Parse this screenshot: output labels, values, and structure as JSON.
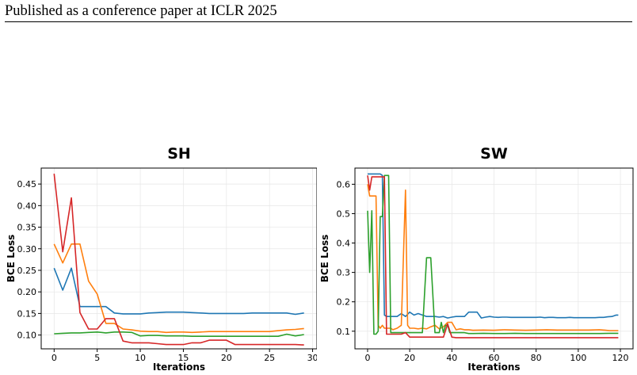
{
  "page": {
    "header": "Published as a conference paper at ICLR 2025"
  },
  "colors": {
    "blue": "#1f77b4",
    "orange": "#ff7f0e",
    "green": "#2ca02c",
    "red": "#d62728",
    "grid": "#e6e6e6"
  },
  "chart_data": [
    {
      "type": "line",
      "title": "SH",
      "xlabel": "Iterations",
      "ylabel": "BCE Loss",
      "xlim": [
        -1.5,
        30.5
      ],
      "ylim": [
        0.068,
        0.487
      ],
      "xticks": [
        0,
        5,
        10,
        15,
        20,
        25,
        30
      ],
      "yticks": [
        0.1,
        0.15,
        0.2,
        0.25,
        0.3,
        0.35,
        0.4,
        0.45
      ],
      "ytick_labels": [
        "0.10",
        "0.15",
        "0.20",
        "0.25",
        "0.30",
        "0.35",
        "0.40",
        "0.45"
      ],
      "grid": true,
      "legend": "none",
      "series": [
        {
          "color": "#1f77b4",
          "x": [
            0,
            1,
            2,
            3,
            4,
            5,
            6,
            7,
            8,
            9,
            10,
            11,
            12,
            13,
            14,
            15,
            16,
            17,
            18,
            19,
            20,
            21,
            22,
            23,
            24,
            25,
            26,
            27,
            28,
            29
          ],
          "y": [
            0.255,
            0.204,
            0.255,
            0.166,
            0.166,
            0.166,
            0.166,
            0.151,
            0.149,
            0.149,
            0.149,
            0.151,
            0.152,
            0.153,
            0.153,
            0.153,
            0.152,
            0.151,
            0.15,
            0.15,
            0.15,
            0.15,
            0.15,
            0.151,
            0.151,
            0.151,
            0.151,
            0.151,
            0.148,
            0.151
          ]
        },
        {
          "color": "#ff7f0e",
          "x": [
            0,
            1,
            2,
            3,
            4,
            5,
            6,
            7,
            8,
            9,
            10,
            11,
            12,
            13,
            14,
            15,
            16,
            17,
            18,
            19,
            20,
            21,
            22,
            23,
            24,
            25,
            26,
            27,
            28,
            29
          ],
          "y": [
            0.311,
            0.267,
            0.311,
            0.311,
            0.225,
            0.195,
            0.127,
            0.127,
            0.114,
            0.112,
            0.109,
            0.108,
            0.108,
            0.106,
            0.107,
            0.107,
            0.106,
            0.107,
            0.108,
            0.108,
            0.108,
            0.108,
            0.108,
            0.108,
            0.108,
            0.108,
            0.11,
            0.112,
            0.113,
            0.115
          ]
        },
        {
          "color": "#2ca02c",
          "x": [
            0,
            1,
            2,
            3,
            4,
            5,
            6,
            7,
            8,
            9,
            10,
            11,
            12,
            13,
            14,
            15,
            16,
            17,
            18,
            19,
            20,
            21,
            22,
            23,
            24,
            25,
            26,
            27,
            28,
            29
          ],
          "y": [
            0.103,
            0.104,
            0.105,
            0.105,
            0.106,
            0.107,
            0.105,
            0.107,
            0.107,
            0.106,
            0.098,
            0.099,
            0.099,
            0.098,
            0.098,
            0.098,
            0.097,
            0.097,
            0.097,
            0.097,
            0.097,
            0.097,
            0.097,
            0.097,
            0.097,
            0.097,
            0.097,
            0.102,
            0.098,
            0.101
          ]
        },
        {
          "color": "#d62728",
          "x": [
            0,
            1,
            2,
            3,
            4,
            5,
            6,
            7,
            8,
            9,
            10,
            11,
            12,
            13,
            14,
            15,
            16,
            17,
            18,
            19,
            20,
            21,
            22,
            23,
            24,
            25,
            26,
            27,
            28,
            29
          ],
          "y": [
            0.474,
            0.293,
            0.418,
            0.152,
            0.114,
            0.114,
            0.138,
            0.138,
            0.086,
            0.082,
            0.082,
            0.082,
            0.08,
            0.078,
            0.078,
            0.078,
            0.082,
            0.082,
            0.088,
            0.088,
            0.088,
            0.078,
            0.078,
            0.078,
            0.078,
            0.078,
            0.078,
            0.078,
            0.078,
            0.077
          ]
        }
      ]
    },
    {
      "type": "line",
      "title": "SW",
      "xlabel": "Iterations",
      "ylabel": "BCE Loss",
      "xlim": [
        -6,
        126
      ],
      "ylim": [
        0.04,
        0.655
      ],
      "xticks": [
        0,
        20,
        40,
        60,
        80,
        100,
        120
      ],
      "yticks": [
        0.1,
        0.2,
        0.3,
        0.4,
        0.5,
        0.6
      ],
      "ytick_labels": [
        "0.1",
        "0.2",
        "0.3",
        "0.4",
        "0.5",
        "0.6"
      ],
      "grid": true,
      "legend": "none",
      "series": [
        {
          "color": "#1f77b4",
          "x": [
            0,
            1,
            2,
            3,
            4,
            5,
            6,
            7,
            8,
            9,
            10,
            11,
            12,
            14,
            16,
            18,
            20,
            22,
            24,
            26,
            28,
            30,
            32,
            34,
            36,
            38,
            40,
            42,
            44,
            46,
            48,
            50,
            52,
            54,
            56,
            58,
            60,
            62,
            64,
            66,
            68,
            70,
            72,
            74,
            76,
            78,
            80,
            82,
            84,
            86,
            88,
            90,
            92,
            94,
            96,
            98,
            100,
            102,
            104,
            106,
            108,
            110,
            112,
            114,
            116,
            118,
            119
          ],
          "y": [
            0.635,
            0.635,
            0.635,
            0.635,
            0.635,
            0.635,
            0.635,
            0.63,
            0.155,
            0.15,
            0.15,
            0.15,
            0.15,
            0.15,
            0.16,
            0.15,
            0.165,
            0.155,
            0.16,
            0.155,
            0.15,
            0.15,
            0.15,
            0.148,
            0.15,
            0.145,
            0.148,
            0.15,
            0.15,
            0.15,
            0.165,
            0.165,
            0.165,
            0.145,
            0.148,
            0.15,
            0.148,
            0.147,
            0.148,
            0.148,
            0.147,
            0.147,
            0.147,
            0.147,
            0.147,
            0.147,
            0.147,
            0.148,
            0.146,
            0.147,
            0.147,
            0.146,
            0.146,
            0.146,
            0.147,
            0.146,
            0.146,
            0.146,
            0.146,
            0.146,
            0.146,
            0.147,
            0.147,
            0.149,
            0.15,
            0.155,
            0.155
          ]
        },
        {
          "color": "#ff7f0e",
          "x": [
            0,
            1,
            2,
            3,
            4,
            5,
            6,
            7,
            8,
            9,
            10,
            11,
            12,
            14,
            16,
            18,
            19,
            20,
            22,
            24,
            26,
            28,
            30,
            32,
            34,
            36,
            38,
            40,
            42,
            44,
            46,
            48,
            50,
            55,
            60,
            65,
            70,
            75,
            80,
            85,
            90,
            95,
            100,
            105,
            110,
            115,
            119
          ],
          "y": [
            0.6,
            0.56,
            0.56,
            0.56,
            0.56,
            0.12,
            0.11,
            0.12,
            0.11,
            0.11,
            0.11,
            0.11,
            0.105,
            0.11,
            0.12,
            0.58,
            0.12,
            0.11,
            0.11,
            0.108,
            0.11,
            0.108,
            0.115,
            0.12,
            0.108,
            0.115,
            0.13,
            0.13,
            0.105,
            0.108,
            0.105,
            0.105,
            0.103,
            0.104,
            0.103,
            0.105,
            0.104,
            0.103,
            0.104,
            0.105,
            0.104,
            0.104,
            0.104,
            0.104,
            0.105,
            0.102,
            0.102
          ]
        },
        {
          "color": "#2ca02c",
          "x": [
            0,
            1,
            2,
            3,
            4,
            5,
            6,
            7,
            8,
            9,
            10,
            11,
            12,
            14,
            16,
            18,
            20,
            22,
            24,
            26,
            28,
            30,
            32,
            34,
            35,
            36,
            37,
            38,
            39,
            40,
            42,
            44,
            46,
            48,
            50,
            55,
            60,
            65,
            70,
            75,
            80,
            85,
            90,
            95,
            100,
            105,
            110,
            115,
            119
          ],
          "y": [
            0.51,
            0.3,
            0.51,
            0.09,
            0.09,
            0.1,
            0.49,
            0.49,
            0.63,
            0.63,
            0.63,
            0.095,
            0.095,
            0.095,
            0.095,
            0.095,
            0.095,
            0.095,
            0.095,
            0.095,
            0.35,
            0.35,
            0.095,
            0.095,
            0.13,
            0.095,
            0.12,
            0.12,
            0.095,
            0.095,
            0.095,
            0.095,
            0.095,
            0.092,
            0.092,
            0.093,
            0.092,
            0.092,
            0.093,
            0.092,
            0.092,
            0.092,
            0.092,
            0.092,
            0.092,
            0.092,
            0.092,
            0.093,
            0.093
          ]
        },
        {
          "color": "#d62728",
          "x": [
            0,
            1,
            2,
            3,
            4,
            5,
            6,
            7,
            8,
            9,
            10,
            11,
            12,
            14,
            16,
            18,
            20,
            22,
            24,
            26,
            28,
            30,
            32,
            34,
            36,
            38,
            40,
            42,
            44,
            46,
            48,
            50,
            55,
            60,
            65,
            70,
            75,
            80,
            85,
            90,
            95,
            100,
            105,
            110,
            115,
            119
          ],
          "y": [
            0.63,
            0.58,
            0.625,
            0.625,
            0.625,
            0.625,
            0.625,
            0.625,
            0.625,
            0.09,
            0.09,
            0.09,
            0.09,
            0.09,
            0.09,
            0.095,
            0.08,
            0.08,
            0.08,
            0.08,
            0.08,
            0.08,
            0.08,
            0.08,
            0.08,
            0.125,
            0.08,
            0.078,
            0.078,
            0.078,
            0.078,
            0.078,
            0.078,
            0.078,
            0.078,
            0.078,
            0.078,
            0.078,
            0.078,
            0.078,
            0.078,
            0.078,
            0.078,
            0.078,
            0.078,
            0.078
          ]
        }
      ]
    }
  ]
}
